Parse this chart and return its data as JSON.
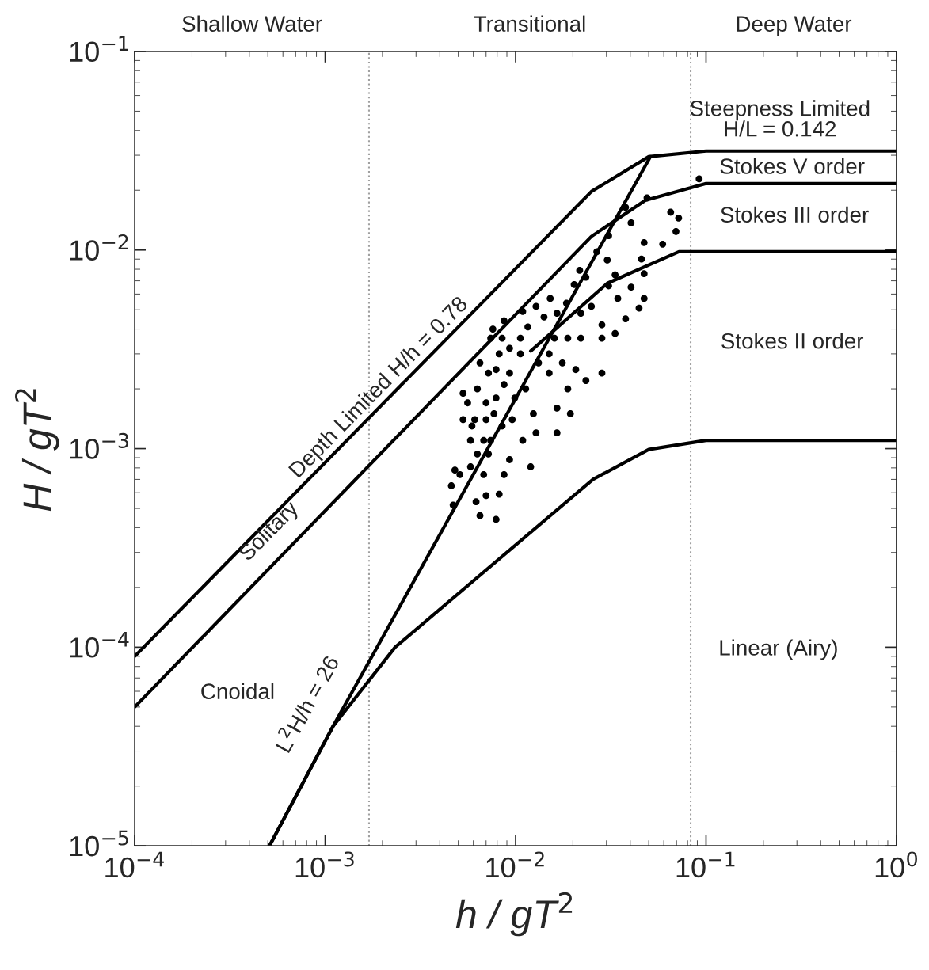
{
  "chart_data": {
    "type": "line",
    "xlabel": "h / gT$^{2}$",
    "ylabel": "H / gT$^{2}$",
    "log": "xy",
    "grid": false,
    "legend": false,
    "xlim": [
      0.0001,
      1
    ],
    "ylim": [
      1e-05,
      0.1
    ],
    "xticks": [
      {
        "value": 0.0001,
        "label": "10$^{−4}$"
      },
      {
        "value": 0.001,
        "label": "10$^{−3}$"
      },
      {
        "value": 0.01,
        "label": "10$^{−2}$"
      },
      {
        "value": 0.1,
        "label": "10$^{−1}$"
      },
      {
        "value": 1,
        "label": "10$^{0}$"
      }
    ],
    "yticks": [
      {
        "value": 1e-05,
        "label": "10$^{−5}$"
      },
      {
        "value": 0.0001,
        "label": "10$^{−4}$"
      },
      {
        "value": 0.001,
        "label": "10$^{−3}$"
      },
      {
        "value": 0.01,
        "label": "10$^{−2}$"
      },
      {
        "value": 0.1,
        "label": "10$^{−1}$"
      }
    ],
    "ref_lines": [
      {
        "axis": "x",
        "value": 0.0017,
        "color": "#a0a0a0",
        "line_style": "dotted"
      },
      {
        "axis": "x",
        "value": 0.083,
        "color": "#a0a0a0",
        "line_style": "dotted"
      }
    ],
    "series": [
      {
        "color": "#000000",
        "line_style": "solid",
        "x": [
          0.0001,
          0.025,
          0.05,
          0.1,
          1
        ],
        "values": [
          9e-05,
          0.0197,
          0.0295,
          0.0315,
          0.0315
        ]
      },
      {
        "color": "#000000",
        "line_style": "solid",
        "x": [
          0.0001,
          0.025,
          0.048,
          0.1,
          1
        ],
        "values": [
          5e-05,
          0.0117,
          0.0178,
          0.0216,
          0.0216
        ]
      },
      {
        "color": "#000000",
        "line_style": "solid",
        "x": [
          0.00051,
          0.0011,
          0.051
        ],
        "values": [
          1e-05,
          4e-05,
          0.0295
        ]
      },
      {
        "color": "#000000",
        "line_style": "solid",
        "x": [
          0.00051,
          0.0011,
          0.00233,
          0.0255,
          0.05,
          0.1,
          1
        ],
        "values": [
          1e-05,
          4e-05,
          0.0001,
          0.0007,
          0.00099,
          0.0011,
          0.0011
        ]
      },
      {
        "color": "#000000",
        "line_style": "solid",
        "x": [
          0.012,
          0.0303,
          0.072,
          1
        ],
        "values": [
          0.0031,
          0.0068,
          0.0098,
          0.0098
        ]
      },
      {
        "type": "scatter",
        "color": "#000000",
        "marker": "circle",
        "x": [
          0.049,
          0.0378,
          0.0652,
          0.0718,
          0.0404,
          0.0695,
          0.0308,
          0.0473,
          0.0592,
          0.0267,
          0.0303,
          0.0458,
          0.0217,
          0.0333,
          0.0473,
          0.0234,
          0.0308,
          0.0404,
          0.0203,
          0.0152,
          0.0185,
          0.025,
          0.0344,
          0.0473,
          0.0378,
          0.0333,
          0.0284,
          0.022,
          0.0165,
          0.0128,
          0.0109,
          0.0087,
          0.0076,
          0.0074,
          0.0116,
          0.016,
          0.022,
          0.0284,
          0.0234,
          0.0188,
          0.015,
          0.0132,
          0.0106,
          0.0093,
          0.0082,
          0.0079,
          0.0087,
          0.0099,
          0.0124,
          0.0165,
          0.0194,
          0.0165,
          0.0128,
          0.0109,
          0.0085,
          0.0077,
          0.007,
          0.0063,
          0.0053,
          0.0056,
          0.0053,
          0.0058,
          0.0063,
          0.0072,
          0.0093,
          0.012,
          0.0087,
          0.0082,
          0.0062,
          0.007,
          0.0065,
          0.0079,
          0.0046,
          0.0048,
          0.0047,
          0.0051,
          0.0058,
          0.0068,
          0.0059,
          0.007,
          0.0079,
          0.0093,
          0.0072,
          0.0065,
          0.0085,
          0.0106,
          0.015,
          0.0176,
          0.0207,
          0.0188,
          0.0141,
          0.0284,
          0.0074,
          0.0096,
          0.0113,
          0.0068,
          0.0061,
          0.0445,
          0.092
        ],
        "values": [
          0.0183,
          0.0164,
          0.0155,
          0.0145,
          0.0137,
          0.0124,
          0.0118,
          0.0109,
          0.0107,
          0.0098,
          0.0089,
          0.009,
          0.0079,
          0.0075,
          0.0076,
          0.0073,
          0.0066,
          0.0065,
          0.0067,
          0.0057,
          0.0054,
          0.0052,
          0.0057,
          0.0057,
          0.0045,
          0.0038,
          0.0042,
          0.0048,
          0.0048,
          0.0052,
          0.0049,
          0.0044,
          0.004,
          0.0036,
          0.0041,
          0.0036,
          0.0036,
          0.0024,
          0.0022,
          0.002,
          0.0024,
          0.0027,
          0.003,
          0.0032,
          0.003,
          0.0025,
          0.0021,
          0.0018,
          0.0015,
          0.0016,
          0.0015,
          0.0012,
          0.0012,
          0.0011,
          0.0013,
          0.0015,
          0.0017,
          0.002,
          0.0019,
          0.0017,
          0.0014,
          0.0011,
          0.00094,
          0.00094,
          0.00088,
          0.00081,
          0.00074,
          0.00059,
          0.00054,
          0.00058,
          0.00046,
          0.00044,
          0.00065,
          0.00078,
          0.00052,
          0.00074,
          0.00081,
          0.00074,
          0.0013,
          0.0014,
          0.0018,
          0.0024,
          0.0024,
          0.0027,
          0.0036,
          0.0036,
          0.003,
          0.0027,
          0.0025,
          0.0036,
          0.0046,
          0.0036,
          0.0011,
          0.0014,
          0.002,
          0.0011,
          0.0014,
          0.0051,
          0.0228
        ]
      }
    ],
    "annotations": [
      "Shallow Water",
      "Transitional",
      "Deep Water",
      "Depth Limited H/h = 0.78",
      "Solitary",
      "Cnoidal",
      "L$^{2}$H/h = 26",
      "Steepness Limited\nH/L = 0.142",
      "Stokes V order",
      "Stokes III order",
      "Stokes II order",
      "Linear (Airy)"
    ]
  }
}
